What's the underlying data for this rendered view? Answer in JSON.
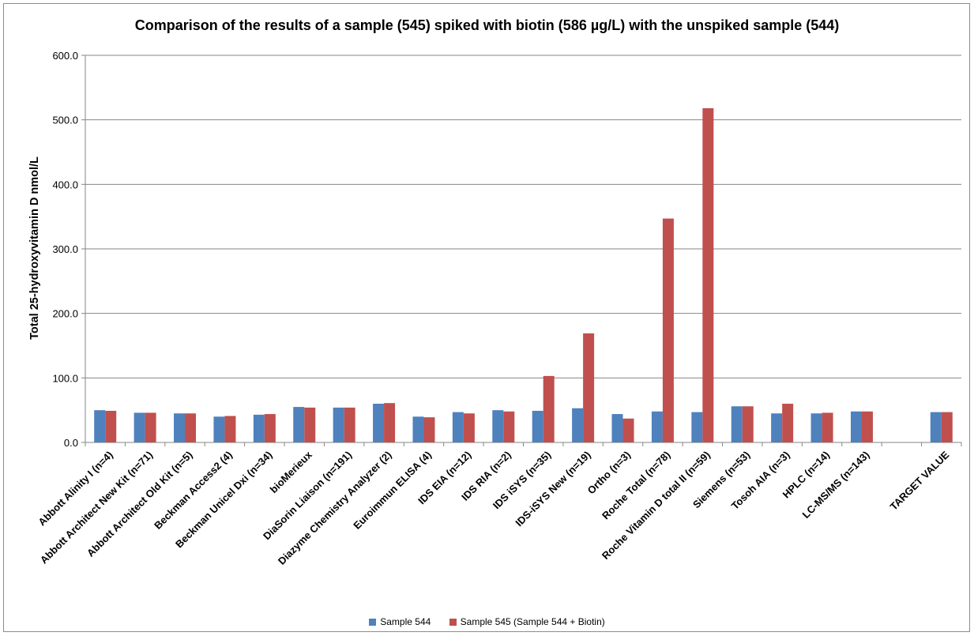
{
  "chart_data": {
    "type": "bar",
    "title": "Comparison of the results of a sample (545) spiked with biotin (586 µg/L) with the unspiked sample (544)",
    "ylabel": "Total 25-hydroxyvitamin D    nmol/L",
    "xlabel": "",
    "ylim": [
      0,
      600
    ],
    "yticks": [
      "0.0",
      "100.0",
      "200.0",
      "300.0",
      "400.0",
      "500.0",
      "600.0"
    ],
    "grid": true,
    "legend_position": "bottom",
    "categories": [
      "Abbott Alinity I (n=4)",
      "Abbott Architect New Kit (n=71)",
      "Abbott Architect Old Kit (n=5)",
      "Beckman Access2 (4)",
      "Beckman Unicel Dxi (n=34)",
      "bioMerieux",
      "DiaSorin Liaison (n=191)",
      "Diazyme Chemistry Analyzer (2)",
      "Euroimmun ELISA (4)",
      "IDS EIA (n=12)",
      "IDS RIA (n=2)",
      "IDS iSYS (n=35)",
      "IDS-iSYS New (n=19)",
      "Ortho (n=3)",
      "Roche Total (n=78)",
      "Roche Vitamin D total II (n=59)",
      "Siemens (n=53)",
      "Tosoh AIA (n=3)",
      "HPLC (n=14)",
      "LC-MS/MS (n=143)",
      "",
      "TARGET VALUE"
    ],
    "series": [
      {
        "name": "Sample 544",
        "color": "#4F81BD",
        "values": [
          50,
          46,
          45,
          40,
          43,
          55,
          54,
          60,
          40,
          47,
          50,
          49,
          53,
          44,
          48,
          47,
          56,
          45,
          45,
          48,
          null,
          47
        ]
      },
      {
        "name": "Sample 545 (Sample 544 + Biotin)",
        "color": "#C0504D",
        "values": [
          49,
          46,
          45,
          41,
          44,
          54,
          54,
          61,
          39,
          45,
          48,
          103,
          169,
          37,
          347,
          518,
          56,
          60,
          46,
          48,
          null,
          47
        ]
      }
    ]
  }
}
